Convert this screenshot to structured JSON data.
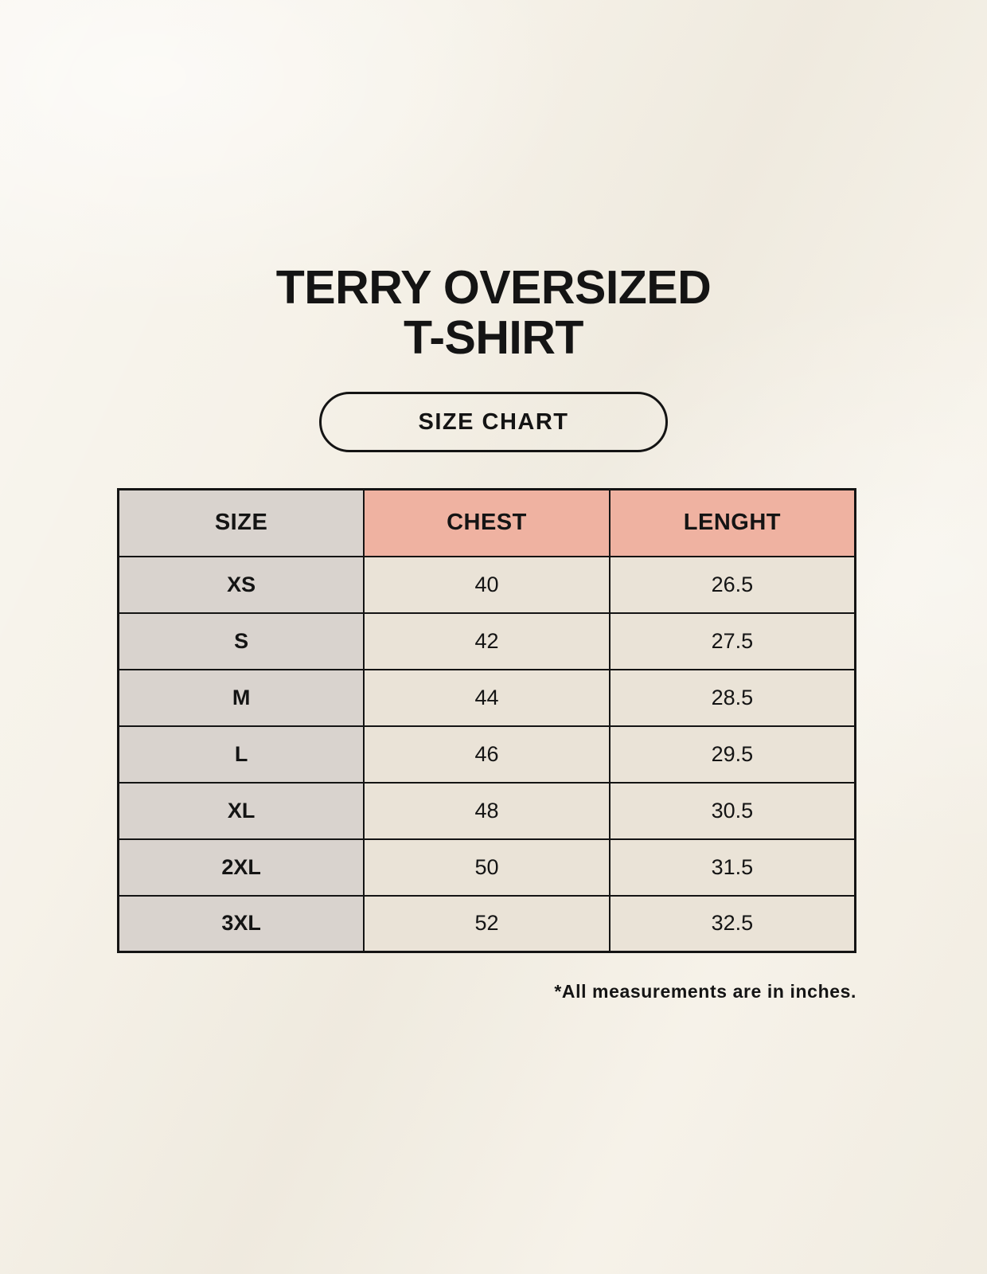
{
  "page": {
    "background_color": "#f6f2e9",
    "text_color": "#141414"
  },
  "title": {
    "line1": "TERRY OVERSIZED",
    "line2": "T-SHIRT"
  },
  "size_chart_badge": {
    "label": "SIZE CHART",
    "border_color": "#141414"
  },
  "table": {
    "headers": [
      "SIZE",
      "CHEST",
      "LENGHT"
    ],
    "rows": [
      {
        "size": "XS",
        "chest": "40",
        "length": "26.5"
      },
      {
        "size": "S",
        "chest": "42",
        "length": "27.5"
      },
      {
        "size": "M",
        "chest": "44",
        "length": "28.5"
      },
      {
        "size": "L",
        "chest": "46",
        "length": "29.5"
      },
      {
        "size": "XL",
        "chest": "48",
        "length": "30.5"
      },
      {
        "size": "2XL",
        "chest": "50",
        "length": "31.5"
      },
      {
        "size": "3XL",
        "chest": "52",
        "length": "32.5"
      }
    ],
    "colors": {
      "size_column_bg": "#d9d3ce",
      "measure_header_bg": "#efb2a1",
      "value_cell_bg": "#eae3d7",
      "border": "#141414"
    }
  },
  "footnote": {
    "text": "*All measurements are in inches."
  }
}
